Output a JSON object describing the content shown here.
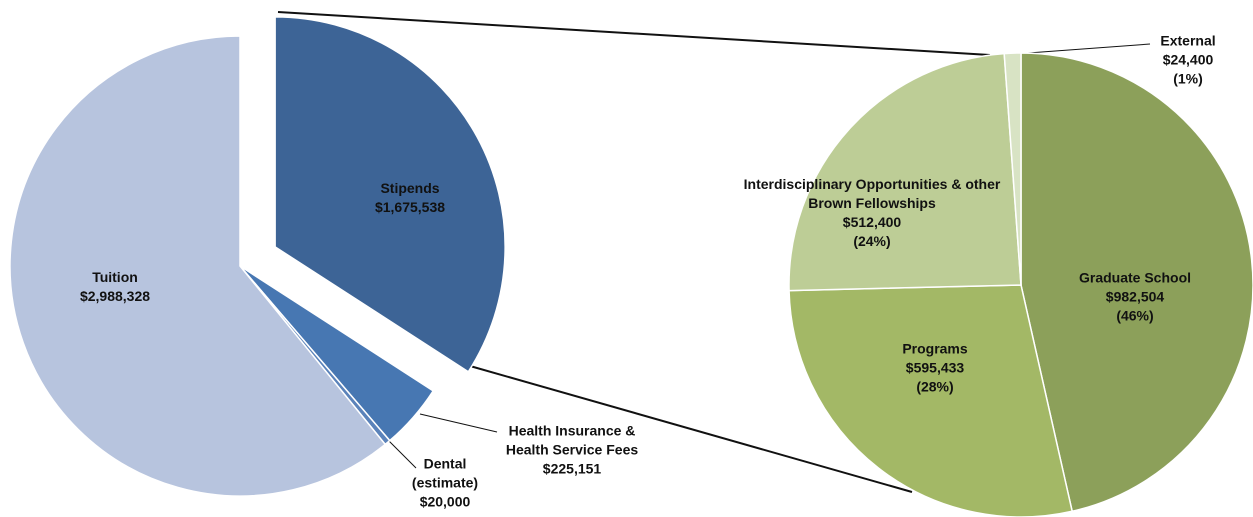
{
  "chart_data": [
    {
      "type": "pie",
      "categories": [
        "Stipends",
        "Health Insurance & Health Service Fees",
        "Dental (estimate)",
        "Tuition"
      ],
      "values": [
        1675538,
        225151,
        20000,
        2988328
      ],
      "value_labels": [
        "$1,675,538",
        "$225,151",
        "$20,000",
        "$2,988,328"
      ],
      "colors": [
        "#3d6496",
        "#4777b2",
        "#5b83ba",
        "#b7c4de"
      ]
    },
    {
      "type": "pie",
      "categories": [
        "Graduate School",
        "Programs",
        "Interdisciplinary Opportunities & other Brown Fellowships",
        "External"
      ],
      "values": [
        982504,
        595433,
        512400,
        24400
      ],
      "value_labels": [
        "$982,504",
        "$595,433",
        "$512,400",
        "$24,400"
      ],
      "percent_labels": [
        "(46%)",
        "(28%)",
        "(24%)",
        "(1%)"
      ],
      "colors": [
        "#8ca05a",
        "#a3b866",
        "#bdcd96",
        "#d8e3c4"
      ]
    }
  ]
}
